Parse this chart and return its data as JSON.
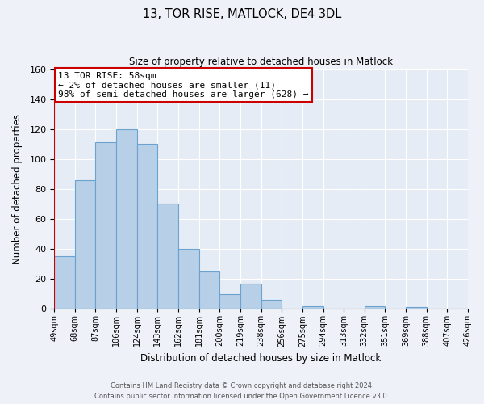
{
  "title": "13, TOR RISE, MATLOCK, DE4 3DL",
  "subtitle": "Size of property relative to detached houses in Matlock",
  "xlabel": "Distribution of detached houses by size in Matlock",
  "ylabel": "Number of detached properties",
  "bar_values": [
    35,
    86,
    111,
    120,
    110,
    70,
    40,
    25,
    10,
    17,
    6,
    0,
    2,
    0,
    0,
    2,
    0,
    1,
    0,
    0
  ],
  "bar_labels": [
    "49sqm",
    "68sqm",
    "87sqm",
    "106sqm",
    "124sqm",
    "143sqm",
    "162sqm",
    "181sqm",
    "200sqm",
    "219sqm",
    "238sqm",
    "256sqm",
    "275sqm",
    "294sqm",
    "313sqm",
    "332sqm",
    "351sqm",
    "369sqm",
    "388sqm",
    "407sqm",
    "426sqm"
  ],
  "bar_color": "#b8cfe8",
  "bar_edge_color": "#6ba3d0",
  "highlight_bar_edge_color": "#cc0000",
  "ylim": [
    0,
    160
  ],
  "yticks": [
    0,
    20,
    40,
    60,
    80,
    100,
    120,
    140,
    160
  ],
  "annotation_box_text": "13 TOR RISE: 58sqm\n← 2% of detached houses are smaller (11)\n98% of semi-detached houses are larger (628) →",
  "annotation_box_edge_color": "#cc0000",
  "footer_line1": "Contains HM Land Registry data © Crown copyright and database right 2024.",
  "footer_line2": "Contains public sector information licensed under the Open Government Licence v3.0.",
  "background_color": "#eef2f8",
  "plot_bg_color": "#e6ecf5",
  "grid_color": "#ffffff",
  "fig_width": 6.0,
  "fig_height": 5.0
}
